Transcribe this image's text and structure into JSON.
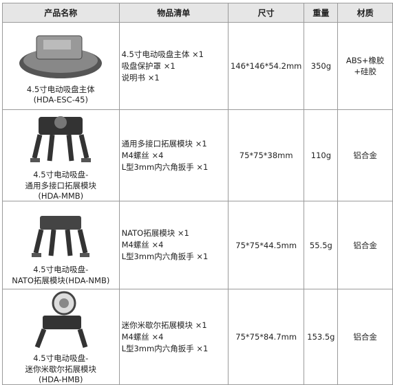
{
  "header": [
    "产品名称",
    "物品清单",
    "尺寸",
    "重量",
    "材质"
  ],
  "rows": [
    {
      "name": [
        "4.5寸电动吸盘主体",
        "(HDA-ESC-45)"
      ],
      "items": [
        "4.5寸电动吸盘主体 ×1",
        "吸盘保护罩 ×1",
        "说明书 ×1"
      ],
      "size": "146*146*54.2mm",
      "weight": "350g",
      "material": [
        "ABS+橡胶",
        "+硅胶"
      ]
    },
    {
      "name": [
        "4.5寸电动吸盘-",
        "通用多接口拓展模块",
        "(HDA-MMB)"
      ],
      "items": [
        "通用多接口拓展模块 ×1",
        "M4螺丝 ×4",
        "L型3mm内六角扳手 ×1"
      ],
      "size": "75*75*38mm",
      "weight": "110g",
      "material": [
        "铝合金"
      ]
    },
    {
      "name": [
        "4.5寸电动吸盘-",
        "NATO拓展模块(HDA-NMB)"
      ],
      "items": [
        "NATO拓展模块 ×1",
        "M4螺丝 ×4",
        "L型3mm内六角扳手 ×1"
      ],
      "size": "75*75*44.5mm",
      "weight": "55.5g",
      "material": [
        "铝合金"
      ]
    },
    {
      "name": [
        "4.5寸电动吸盘-",
        "迷你米歇尔拓展模块",
        "(HDA-HMB)"
      ],
      "items": [
        "迷你米歇尔拓展模块 ×1",
        "M4螺丝 ×4",
        "L型3mm内六角扳手 ×1"
      ],
      "size": "75*75*84.7mm",
      "weight": "153.5g",
      "material": [
        "铝合金"
      ]
    }
  ]
}
